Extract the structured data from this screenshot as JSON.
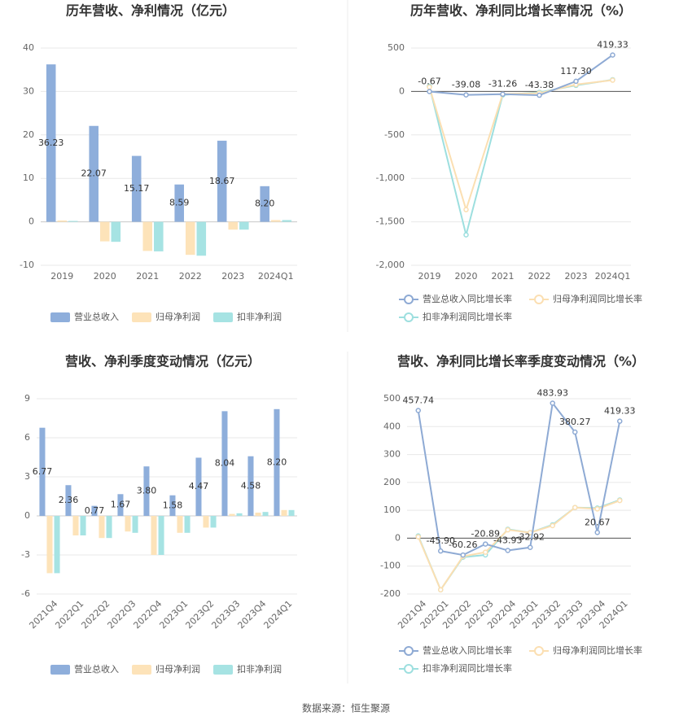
{
  "chart_data": [
    {
      "type": "bar",
      "title": "历年营收、净利情况（亿元）",
      "categories": [
        "2019",
        "2020",
        "2021",
        "2022",
        "2023",
        "2024Q1"
      ],
      "series": [
        {
          "name": "营业总收入",
          "color": "#8eaedb",
          "values": [
            36.23,
            22.07,
            15.17,
            8.59,
            18.67,
            8.2
          ],
          "value_labels": [
            "36.23",
            "22.07",
            "15.17",
            "8.59",
            "18.67",
            "8.20"
          ]
        },
        {
          "name": "归母净利润",
          "color": "#fde3b9",
          "values": [
            0.3,
            -4.5,
            -6.7,
            -7.6,
            -1.8,
            0.4
          ]
        },
        {
          "name": "扣非净利润",
          "color": "#a6e3e3",
          "values": [
            0.2,
            -4.6,
            -6.8,
            -7.8,
            -1.8,
            0.4
          ]
        }
      ],
      "ylim": [
        -10,
        40
      ],
      "yticks": [
        -10,
        0,
        10,
        20,
        30,
        40
      ],
      "grid": true
    },
    {
      "type": "line",
      "title": "历年营收、净利同比增长率情况（%）",
      "categories": [
        "2019",
        "2020",
        "2021",
        "2022",
        "2023",
        "2024Q1"
      ],
      "series": [
        {
          "name": "营业总收入同比增长率",
          "color": "#8eaad4",
          "values": [
            -0.67,
            -39.08,
            -31.26,
            -43.38,
            117.3,
            419.33
          ],
          "value_labels": [
            "-0.67",
            "-39.08",
            "-31.26",
            "-43.38",
            "117.30",
            "419.33"
          ]
        },
        {
          "name": "归母净利润同比增长率",
          "color": "#fbdfb2",
          "values": [
            50,
            -1360,
            -30,
            -20,
            80,
            130
          ]
        },
        {
          "name": "扣非净利润同比增长率",
          "color": "#9ddfdf",
          "values": [
            60,
            -1650,
            -40,
            -10,
            70,
            135
          ]
        }
      ],
      "ylim": [
        -2000,
        500
      ],
      "yticks": [
        {
          "value": -2000,
          "label": "-2,000"
        },
        {
          "value": -1500,
          "label": "-1,500"
        },
        {
          "value": -1000,
          "label": "-1,000"
        },
        -500,
        0,
        500
      ],
      "grid": true
    },
    {
      "type": "bar",
      "title": "营收、净利季度变动情况（亿元）",
      "categories": [
        "2021Q4",
        "2022Q1",
        "2022Q2",
        "2022Q3",
        "2022Q4",
        "2023Q1",
        "2023Q2",
        "2023Q3",
        "2023Q4",
        "2024Q1"
      ],
      "series": [
        {
          "name": "营业总收入",
          "color": "#8eaedb",
          "values": [
            6.77,
            2.36,
            0.77,
            1.67,
            3.8,
            1.58,
            4.47,
            8.04,
            4.58,
            8.2
          ],
          "value_labels": [
            "6.77",
            "2.36",
            "0.77",
            "1.67",
            "3.80",
            "1.58",
            "4.47",
            "8.04",
            "4.58",
            "8.20"
          ]
        },
        {
          "name": "归母净利润",
          "color": "#fde3b9",
          "values": [
            -4.4,
            -1.5,
            -1.7,
            -1.2,
            -3.0,
            -1.3,
            -0.9,
            0.15,
            0.25,
            0.45
          ]
        },
        {
          "name": "扣非净利润",
          "color": "#a6e3e3",
          "values": [
            -4.4,
            -1.5,
            -1.7,
            -1.3,
            -3.0,
            -1.3,
            -0.9,
            0.2,
            0.3,
            0.45
          ]
        }
      ],
      "ylim": [
        -6,
        9
      ],
      "yticks": [
        -6,
        -3,
        0,
        3,
        6,
        9
      ],
      "grid": true
    },
    {
      "type": "line",
      "title": "营收、净利同比增长率季度变动情况（%）",
      "categories": [
        "2021Q4",
        "2022Q1",
        "2022Q2",
        "2022Q3",
        "2022Q4",
        "2023Q1",
        "2023Q2",
        "2023Q3",
        "2023Q4",
        "2024Q1"
      ],
      "series": [
        {
          "name": "营业总收入同比增长率",
          "color": "#8eaad4",
          "values": [
            457.74,
            -45.9,
            -60.26,
            -20.89,
            -43.93,
            -32.92,
            483.93,
            380.27,
            20.67,
            419.33
          ],
          "value_labels": [
            "457.74",
            "-45.90",
            "-60.26",
            "-20.89",
            "-43.93",
            "-32.92",
            "483.93",
            "380.27",
            "20.67",
            "419.33"
          ]
        },
        {
          "name": "归母净利润同比增长率",
          "color": "#fbdfb2",
          "values": [
            5,
            -185,
            -65,
            -50,
            30,
            20,
            45,
            110,
            105,
            135
          ]
        },
        {
          "name": "扣非净利润同比增长率",
          "color": "#9ddfdf",
          "values": [
            8,
            -185,
            -68,
            -60,
            32,
            20,
            48,
            110,
            108,
            137
          ]
        }
      ],
      "ylim": [
        -200,
        500
      ],
      "yticks": [
        -200,
        -100,
        0,
        100,
        200,
        300,
        400,
        500
      ],
      "grid": true
    }
  ],
  "source": "数据来源：恒生聚源"
}
